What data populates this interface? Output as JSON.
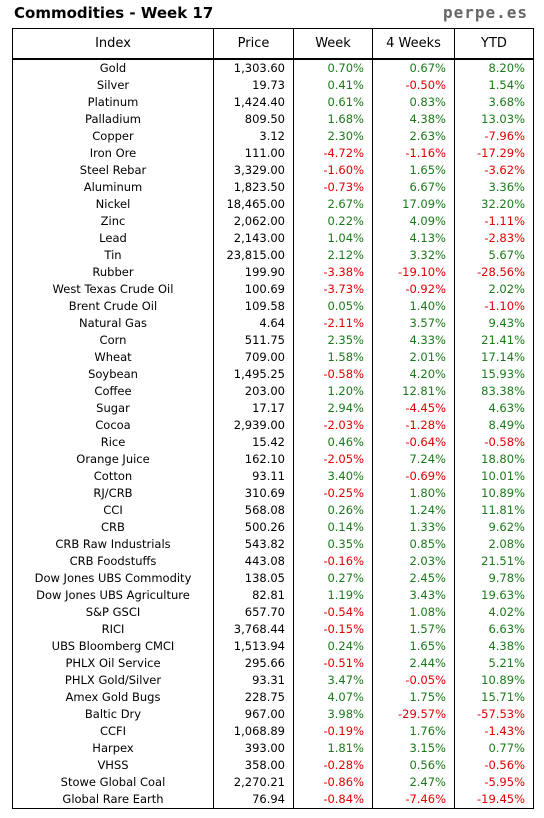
{
  "header": {
    "title": "Commodities - Week 17",
    "site": "perpe.es"
  },
  "columns": [
    "Index",
    "Price",
    "Week",
    "4 Weeks",
    "YTD"
  ],
  "colors": {
    "positive": "#1a7a1a",
    "negative": "#e00000"
  },
  "rows": [
    [
      "Gold",
      "1,303.60",
      "0.70%",
      "0.67%",
      "8.20%"
    ],
    [
      "Silver",
      "19.73",
      "0.41%",
      "-0.50%",
      "1.54%"
    ],
    [
      "Platinum",
      "1,424.40",
      "0.61%",
      "0.83%",
      "3.68%"
    ],
    [
      "Palladium",
      "809.50",
      "1.68%",
      "4.38%",
      "13.03%"
    ],
    [
      "Copper",
      "3.12",
      "2.30%",
      "2.63%",
      "-7.96%"
    ],
    [
      "Iron Ore",
      "111.00",
      "-4.72%",
      "-1.16%",
      "-17.29%"
    ],
    [
      "Steel Rebar",
      "3,329.00",
      "-1.60%",
      "1.65%",
      "-3.62%"
    ],
    [
      "Aluminum",
      "1,823.50",
      "-0.73%",
      "6.67%",
      "3.36%"
    ],
    [
      "Nickel",
      "18,465.00",
      "2.67%",
      "17.09%",
      "32.20%"
    ],
    [
      "Zinc",
      "2,062.00",
      "0.22%",
      "4.09%",
      "-1.11%"
    ],
    [
      "Lead",
      "2,143.00",
      "1.04%",
      "4.13%",
      "-2.83%"
    ],
    [
      "Tin",
      "23,815.00",
      "2.12%",
      "3.32%",
      "5.67%"
    ],
    [
      "Rubber",
      "199.90",
      "-3.38%",
      "-19.10%",
      "-28.56%"
    ],
    [
      "West Texas Crude Oil",
      "100.69",
      "-3.73%",
      "-0.92%",
      "2.02%"
    ],
    [
      "Brent Crude Oil",
      "109.58",
      "0.05%",
      "1.40%",
      "-1.10%"
    ],
    [
      "Natural Gas",
      "4.64",
      "-2.11%",
      "3.57%",
      "9.43%"
    ],
    [
      "Corn",
      "511.75",
      "2.35%",
      "4.33%",
      "21.41%"
    ],
    [
      "Wheat",
      "709.00",
      "1.58%",
      "2.01%",
      "17.14%"
    ],
    [
      "Soybean",
      "1,495.25",
      "-0.58%",
      "4.20%",
      "15.93%"
    ],
    [
      "Coffee",
      "203.00",
      "1.20%",
      "12.81%",
      "83.38%"
    ],
    [
      "Sugar",
      "17.17",
      "2.94%",
      "-4.45%",
      "4.63%"
    ],
    [
      "Cocoa",
      "2,939.00",
      "-2.03%",
      "-1.28%",
      "8.49%"
    ],
    [
      "Rice",
      "15.42",
      "0.46%",
      "-0.64%",
      "-0.58%"
    ],
    [
      "Orange Juice",
      "162.10",
      "-2.05%",
      "7.24%",
      "18.80%"
    ],
    [
      "Cotton",
      "93.11",
      "3.40%",
      "-0.69%",
      "10.01%"
    ],
    [
      "RJ/CRB",
      "310.69",
      "-0.25%",
      "1.80%",
      "10.89%"
    ],
    [
      "CCI",
      "568.08",
      "0.26%",
      "1.24%",
      "11.81%"
    ],
    [
      "CRB",
      "500.26",
      "0.14%",
      "1.33%",
      "9.62%"
    ],
    [
      "CRB Raw Industrials",
      "543.82",
      "0.35%",
      "0.85%",
      "2.08%"
    ],
    [
      "CRB Foodstuffs",
      "443.08",
      "-0.16%",
      "2.03%",
      "21.51%"
    ],
    [
      "Dow Jones UBS Commodity",
      "138.05",
      "0.27%",
      "2.45%",
      "9.78%"
    ],
    [
      "Dow Jones UBS Agriculture",
      "82.81",
      "1.19%",
      "3.43%",
      "19.63%"
    ],
    [
      "S&P GSCI",
      "657.70",
      "-0.54%",
      "1.08%",
      "4.02%"
    ],
    [
      "RICI",
      "3,768.44",
      "-0.15%",
      "1.57%",
      "6.63%"
    ],
    [
      "UBS Bloomberg CMCI",
      "1,513.94",
      "0.24%",
      "1.65%",
      "4.38%"
    ],
    [
      "PHLX Oil Service",
      "295.66",
      "-0.51%",
      "2.44%",
      "5.21%"
    ],
    [
      "PHLX Gold/Silver",
      "93.31",
      "3.47%",
      "-0.05%",
      "10.89%"
    ],
    [
      "Amex Gold Bugs",
      "228.75",
      "4.07%",
      "1.75%",
      "15.71%"
    ],
    [
      "Baltic Dry",
      "967.00",
      "3.98%",
      "-29.57%",
      "-57.53%"
    ],
    [
      "CCFI",
      "1,068.89",
      "-0.19%",
      "1.76%",
      "-1.43%"
    ],
    [
      "Harpex",
      "393.00",
      "1.81%",
      "3.15%",
      "0.77%"
    ],
    [
      "VHSS",
      "358.00",
      "-0.28%",
      "0.56%",
      "-0.56%"
    ],
    [
      "Stowe Global Coal",
      "2,270.21",
      "-0.86%",
      "2.47%",
      "-5.95%"
    ],
    [
      "Global Rare Earth",
      "76.94",
      "-0.84%",
      "-7.46%",
      "-19.45%"
    ]
  ]
}
